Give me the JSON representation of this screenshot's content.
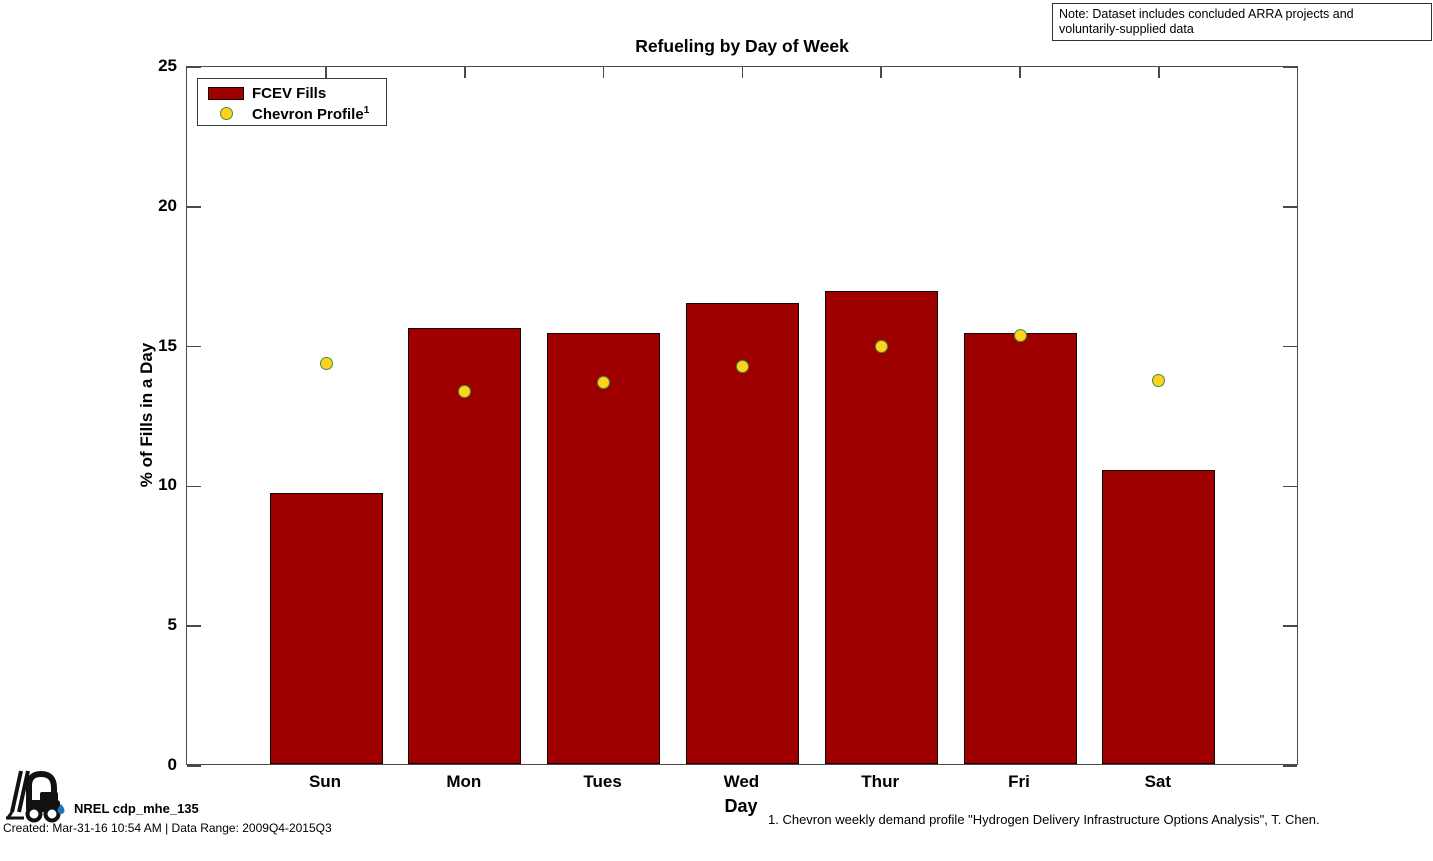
{
  "title": "Refueling by Day of Week",
  "note": {
    "line1": "Note: Dataset includes concluded ARRA projects and",
    "line2": "voluntarily-supplied data"
  },
  "chart_data": {
    "type": "bar",
    "categories": [
      "Sun",
      "Mon",
      "Tues",
      "Wed",
      "Thur",
      "Fri",
      "Sat"
    ],
    "series": [
      {
        "name": "FCEV Fills",
        "type": "bar",
        "color": "#9E0000",
        "values": [
          9.7,
          15.6,
          15.4,
          16.5,
          16.9,
          15.4,
          10.5
        ]
      },
      {
        "name": "Chevron Profile",
        "type": "scatter",
        "marker_fill": "#FFD21E",
        "marker_edge": "#3E8E3E",
        "values": [
          14.4,
          13.4,
          13.7,
          14.3,
          15.0,
          15.4,
          13.8
        ]
      }
    ],
    "xlabel": "Day",
    "ylabel": "% of Fills in a Day",
    "ylim": [
      0,
      25
    ],
    "yticks": [
      0,
      5,
      10,
      15,
      20,
      25
    ],
    "grid": false,
    "legend_position": "top-left"
  },
  "legend": {
    "items": [
      {
        "label": "FCEV Fills"
      },
      {
        "label": "Chevron Profile",
        "superscript": "1"
      }
    ]
  },
  "footer": {
    "logo_label": "NREL cdp_mhe_135",
    "created": "Created: Mar-31-16 10:54 AM | Data Range: 2009Q4-2015Q3",
    "footnote": "1. Chevron weekly demand profile \"Hydrogen Delivery Infrastructure Options Analysis\", T. Chen."
  },
  "colors": {
    "bar": "#9E0000",
    "marker_fill": "#FFD21E",
    "marker_edge": "#3E8E3E",
    "axis": "#4a4a4a",
    "droplet": "#1B75BB"
  }
}
